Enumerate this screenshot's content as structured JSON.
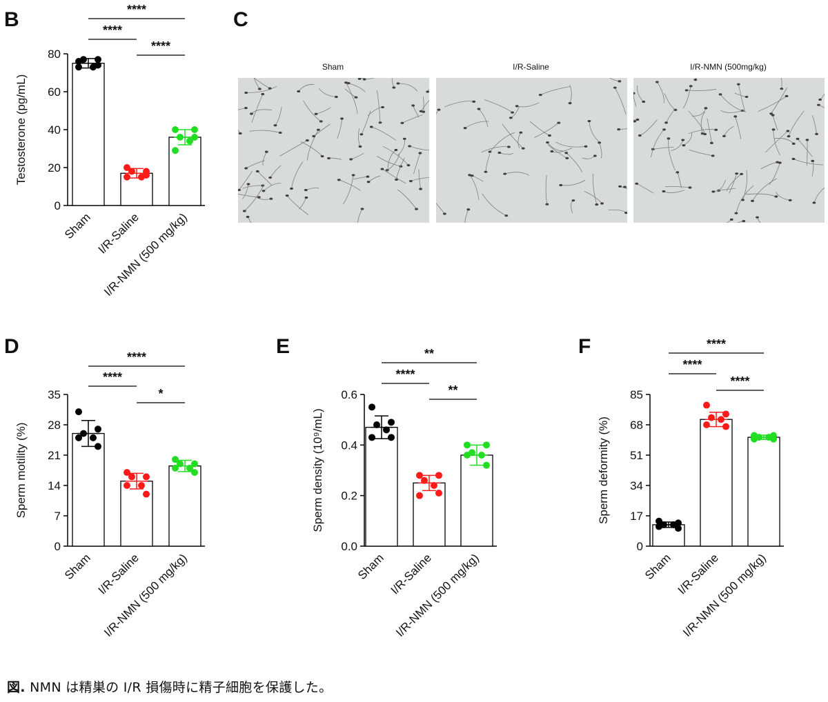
{
  "panels": {
    "B": "B",
    "C": "C",
    "D": "D",
    "E": "E",
    "F": "F"
  },
  "micrographs": [
    "Sham",
    "I/R-Saline",
    "I/R-NMN (500mg/kg)"
  ],
  "caption": {
    "label": "図.",
    "text": " NMN は精巣の I/R 損傷時に精子細胞を保護した。"
  },
  "colors": {
    "sham": "#000000",
    "saline": "#ff1a1a",
    "nmn": "#22dd22"
  },
  "chart_data": [
    {
      "panel": "B",
      "type": "bar",
      "categories": [
        "Sham",
        "I/R-Saline",
        "I/R-NMN (500 mg/kg)"
      ],
      "ylabel": "Testosterone (pg/mL)",
      "ylim": [
        0,
        80
      ],
      "yticks": [
        0,
        20,
        40,
        60,
        80
      ],
      "values": [
        75,
        17,
        36
      ],
      "sd": [
        2.5,
        2.5,
        4
      ],
      "points": [
        [
          76,
          77,
          77,
          73,
          73,
          74
        ],
        [
          20,
          18,
          18,
          15,
          15,
          16
        ],
        [
          40,
          40,
          36,
          34,
          29,
          36
        ]
      ],
      "brackets": [
        {
          "from": 0,
          "to": 2,
          "label": "****"
        },
        {
          "from": 0,
          "to": 1,
          "label": "****"
        },
        {
          "from": 1,
          "to": 2,
          "label": "****"
        }
      ]
    },
    {
      "panel": "D",
      "type": "bar",
      "categories": [
        "Sham",
        "I/R-Saline",
        "I/R-NMN (500 mg/kg)"
      ],
      "ylabel": "Sperm motility (%)",
      "ylim": [
        0,
        35
      ],
      "yticks": [
        0,
        7,
        14,
        21,
        28,
        35
      ],
      "values": [
        26,
        15,
        18.5
      ],
      "sd": [
        3,
        1.8,
        1.3
      ],
      "points": [
        [
          31,
          27,
          26,
          25,
          25,
          23
        ],
        [
          17,
          16,
          16,
          14,
          14,
          12
        ],
        [
          20,
          19,
          19,
          18,
          18,
          17
        ]
      ],
      "brackets": [
        {
          "from": 0,
          "to": 2,
          "label": "****"
        },
        {
          "from": 0,
          "to": 1,
          "label": "****"
        },
        {
          "from": 1,
          "to": 2,
          "label": "*"
        }
      ]
    },
    {
      "panel": "E",
      "type": "bar",
      "categories": [
        "Sham",
        "I/R-Saline",
        "I/R-NMN (500 mg/kg)"
      ],
      "ylabel": "Sperm density (10⁹/mL)",
      "ylim": [
        0,
        0.6
      ],
      "yticks": [
        "0.0",
        "0.2",
        "0.4",
        "0.6"
      ],
      "values": [
        0.47,
        0.25,
        0.36
      ],
      "sd": [
        0.045,
        0.03,
        0.04
      ],
      "points": [
        [
          0.55,
          0.49,
          0.48,
          0.46,
          0.43,
          0.43
        ],
        [
          0.28,
          0.28,
          0.26,
          0.24,
          0.2,
          0.21
        ],
        [
          0.4,
          0.4,
          0.37,
          0.36,
          0.36,
          0.32
        ]
      ],
      "brackets": [
        {
          "from": 0,
          "to": 2,
          "label": "**"
        },
        {
          "from": 0,
          "to": 1,
          "label": "****"
        },
        {
          "from": 1,
          "to": 2,
          "label": "**"
        }
      ]
    },
    {
      "panel": "F",
      "type": "bar",
      "categories": [
        "Sham",
        "I/R-Saline",
        "I/R-NMN (500 mg/kg)"
      ],
      "ylabel": "Sperm deformity (%)",
      "ylim": [
        0,
        85
      ],
      "yticks": [
        0,
        17,
        34,
        51,
        68,
        85
      ],
      "values": [
        12,
        71,
        61
      ],
      "sd": [
        1.5,
        4,
        1.2
      ],
      "points": [
        [
          14,
          13,
          12,
          12,
          11,
          10
        ],
        [
          79,
          74,
          72,
          71,
          68,
          67
        ],
        [
          62,
          62,
          61,
          61,
          60,
          60
        ]
      ],
      "brackets": [
        {
          "from": 0,
          "to": 2,
          "label": "****"
        },
        {
          "from": 0,
          "to": 1,
          "label": "****"
        },
        {
          "from": 1,
          "to": 2,
          "label": "****"
        }
      ]
    }
  ]
}
